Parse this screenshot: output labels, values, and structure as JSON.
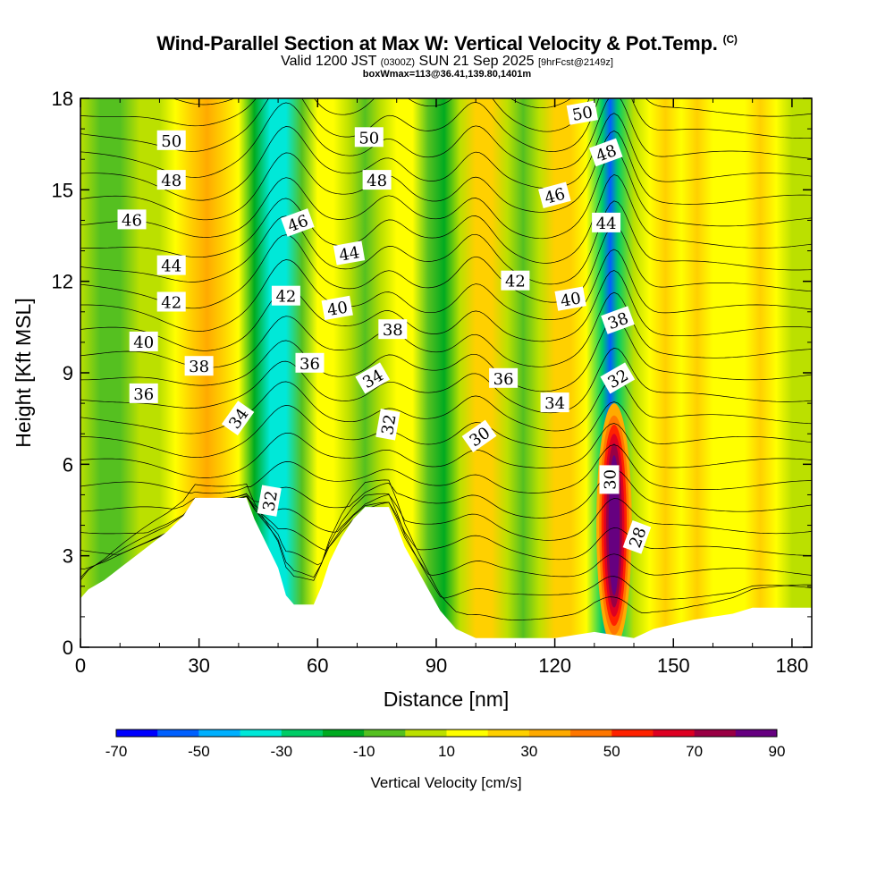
{
  "header": {
    "title": "Wind-Parallel Section at Max W: Vertical Velocity & Pot.Temp.",
    "copyright_mark": "(C)",
    "subtitle_main": "Valid 1200 JST",
    "subtitle_utc": "(0300Z)",
    "subtitle_date": "SUN 21 Sep 2025",
    "subtitle_fcst": "[9hrFcst@2149z]",
    "info_line": "boxWmax=113@36.41,139.80,1401m"
  },
  "chart_data": {
    "type": "heatmap",
    "title": "Wind-Parallel Section at Max W: Vertical Velocity & Pot.Temp.",
    "xlabel": "Distance [nm]",
    "ylabel": "Height [Kft MSL]",
    "xlim": [
      0,
      185
    ],
    "ylim": [
      0,
      18
    ],
    "xticks": [
      0,
      30,
      60,
      90,
      120,
      150,
      180
    ],
    "yticks": [
      0,
      3,
      6,
      9,
      12,
      15,
      18
    ],
    "colorbar": {
      "title": "Vertical Velocity [cm/s]",
      "tick_labels": [
        -70,
        -50,
        -30,
        -10,
        10,
        30,
        50,
        70,
        90
      ],
      "bounds": [
        -70,
        -60,
        -50,
        -40,
        -30,
        -20,
        -10,
        0,
        10,
        20,
        30,
        40,
        50,
        60,
        70,
        80,
        90
      ],
      "colors": [
        "#0000ff",
        "#0060ff",
        "#00b0ff",
        "#00e8d8",
        "#00cc66",
        "#00aa20",
        "#55c020",
        "#bbe000",
        "#ffff00",
        "#ffd000",
        "#ffaa00",
        "#ff7700",
        "#ff2200",
        "#dd0022",
        "#990044",
        "#660080"
      ]
    },
    "vertical_velocity_columns": [
      {
        "x": 0,
        "w": 0
      },
      {
        "x": 5,
        "w": -5
      },
      {
        "x": 10,
        "w": -2
      },
      {
        "x": 15,
        "w": 5
      },
      {
        "x": 20,
        "w": 0
      },
      {
        "x": 24,
        "w": 15
      },
      {
        "x": 28,
        "w": 25
      },
      {
        "x": 32,
        "w": 30
      },
      {
        "x": 36,
        "w": 25
      },
      {
        "x": 40,
        "w": 10
      },
      {
        "x": 44,
        "w": -20
      },
      {
        "x": 48,
        "w": -40
      },
      {
        "x": 52,
        "w": -35
      },
      {
        "x": 56,
        "w": -10
      },
      {
        "x": 60,
        "w": 10
      },
      {
        "x": 64,
        "w": 15
      },
      {
        "x": 68,
        "w": 5
      },
      {
        "x": 72,
        "w": -10
      },
      {
        "x": 76,
        "w": 5
      },
      {
        "x": 80,
        "w": 15
      },
      {
        "x": 84,
        "w": 15
      },
      {
        "x": 88,
        "w": -10
      },
      {
        "x": 92,
        "w": -15
      },
      {
        "x": 96,
        "w": 5
      },
      {
        "x": 100,
        "w": 25
      },
      {
        "x": 104,
        "w": 20
      },
      {
        "x": 108,
        "w": 5
      },
      {
        "x": 112,
        "w": -10
      },
      {
        "x": 116,
        "w": 5
      },
      {
        "x": 120,
        "w": 20
      },
      {
        "x": 124,
        "w": 25
      },
      {
        "x": 128,
        "w": 10
      },
      {
        "x": 132,
        "w": -25
      },
      {
        "x": 134,
        "w": -55
      },
      {
        "x": 136,
        "w": -30
      },
      {
        "x": 140,
        "w": 0
      },
      {
        "x": 144,
        "w": 15
      },
      {
        "x": 148,
        "w": 20
      },
      {
        "x": 152,
        "w": 15
      },
      {
        "x": 156,
        "w": 20
      },
      {
        "x": 160,
        "w": 15
      },
      {
        "x": 164,
        "w": 10
      },
      {
        "x": 168,
        "w": 15
      },
      {
        "x": 172,
        "w": 20
      },
      {
        "x": 176,
        "w": 10
      },
      {
        "x": 180,
        "w": 5
      },
      {
        "x": 185,
        "w": 5
      }
    ],
    "updraft_core": {
      "x": 135,
      "height_kft": 4,
      "w_max": 90
    },
    "terrain": [
      {
        "x": 0,
        "h": 1.6
      },
      {
        "x": 2,
        "h": 1.9
      },
      {
        "x": 6,
        "h": 2.2
      },
      {
        "x": 10,
        "h": 2.6
      },
      {
        "x": 14,
        "h": 3.0
      },
      {
        "x": 18,
        "h": 3.4
      },
      {
        "x": 22,
        "h": 3.8
      },
      {
        "x": 26,
        "h": 4.3
      },
      {
        "x": 29,
        "h": 4.9
      },
      {
        "x": 42,
        "h": 4.9
      },
      {
        "x": 44,
        "h": 4.2
      },
      {
        "x": 47,
        "h": 3.4
      },
      {
        "x": 50,
        "h": 2.6
      },
      {
        "x": 52,
        "h": 1.7
      },
      {
        "x": 54,
        "h": 1.4
      },
      {
        "x": 59,
        "h": 1.4
      },
      {
        "x": 61,
        "h": 2.0
      },
      {
        "x": 63,
        "h": 2.8
      },
      {
        "x": 66,
        "h": 3.6
      },
      {
        "x": 69,
        "h": 4.2
      },
      {
        "x": 72,
        "h": 4.6
      },
      {
        "x": 78,
        "h": 4.6
      },
      {
        "x": 80,
        "h": 4.0
      },
      {
        "x": 82,
        "h": 3.3
      },
      {
        "x": 85,
        "h": 2.6
      },
      {
        "x": 88,
        "h": 1.9
      },
      {
        "x": 91,
        "h": 1.2
      },
      {
        "x": 95,
        "h": 0.6
      },
      {
        "x": 100,
        "h": 0.3
      },
      {
        "x": 120,
        "h": 0.3
      },
      {
        "x": 130,
        "h": 0.5
      },
      {
        "x": 140,
        "h": 0.3
      },
      {
        "x": 145,
        "h": 0.6
      },
      {
        "x": 155,
        "h": 0.9
      },
      {
        "x": 165,
        "h": 1.1
      },
      {
        "x": 170,
        "h": 1.3
      },
      {
        "x": 185,
        "h": 1.3
      }
    ],
    "theta_levels": [
      28,
      29,
      30,
      31,
      32,
      33,
      34,
      35,
      36,
      37,
      38,
      39,
      40,
      41,
      42,
      43,
      44,
      45,
      46,
      47,
      48,
      49,
      50,
      51,
      52
    ],
    "theta_labels": [
      {
        "text": "50",
        "x": 23,
        "y": 16.6,
        "rot": 0
      },
      {
        "text": "48",
        "x": 23,
        "y": 15.3,
        "rot": 0
      },
      {
        "text": "46",
        "x": 13,
        "y": 14.0,
        "rot": 0
      },
      {
        "text": "44",
        "x": 23,
        "y": 12.5,
        "rot": 0
      },
      {
        "text": "42",
        "x": 23,
        "y": 11.3,
        "rot": 0
      },
      {
        "text": "40",
        "x": 16,
        "y": 10.0,
        "rot": 0
      },
      {
        "text": "38",
        "x": 30,
        "y": 9.2,
        "rot": 0
      },
      {
        "text": "36",
        "x": 16,
        "y": 8.3,
        "rot": 0
      },
      {
        "text": "34",
        "x": 40,
        "y": 7.5,
        "rot": -55
      },
      {
        "text": "32",
        "x": 48,
        "y": 4.8,
        "rot": -80
      },
      {
        "text": "46",
        "x": 55,
        "y": 13.9,
        "rot": -20
      },
      {
        "text": "42",
        "x": 52,
        "y": 11.5,
        "rot": 0
      },
      {
        "text": "36",
        "x": 58,
        "y": 9.3,
        "rot": 0
      },
      {
        "text": "50",
        "x": 73,
        "y": 16.7,
        "rot": 0
      },
      {
        "text": "48",
        "x": 75,
        "y": 15.3,
        "rot": 0
      },
      {
        "text": "44",
        "x": 68,
        "y": 12.9,
        "rot": -10
      },
      {
        "text": "40",
        "x": 65,
        "y": 11.1,
        "rot": -10
      },
      {
        "text": "38",
        "x": 79,
        "y": 10.4,
        "rot": 0
      },
      {
        "text": "34",
        "x": 74,
        "y": 8.8,
        "rot": -30
      },
      {
        "text": "32",
        "x": 78,
        "y": 7.3,
        "rot": -80
      },
      {
        "text": "36",
        "x": 107,
        "y": 8.8,
        "rot": 0
      },
      {
        "text": "30",
        "x": 101,
        "y": 6.9,
        "rot": -35
      },
      {
        "text": "42",
        "x": 110,
        "y": 12.0,
        "rot": 0
      },
      {
        "text": "34",
        "x": 120,
        "y": 8.0,
        "rot": 0
      },
      {
        "text": "50",
        "x": 127,
        "y": 17.5,
        "rot": -10
      },
      {
        "text": "48",
        "x": 133,
        "y": 16.2,
        "rot": -20
      },
      {
        "text": "46",
        "x": 120,
        "y": 14.8,
        "rot": -15
      },
      {
        "text": "44",
        "x": 133,
        "y": 13.9,
        "rot": 0
      },
      {
        "text": "40",
        "x": 124,
        "y": 11.4,
        "rot": -10
      },
      {
        "text": "38",
        "x": 136,
        "y": 10.7,
        "rot": -20
      },
      {
        "text": "32",
        "x": 136,
        "y": 8.8,
        "rot": -30
      },
      {
        "text": "30",
        "x": 134,
        "y": 5.5,
        "rot": -90
      },
      {
        "text": "28",
        "x": 141,
        "y": 3.6,
        "rot": -70
      }
    ]
  }
}
